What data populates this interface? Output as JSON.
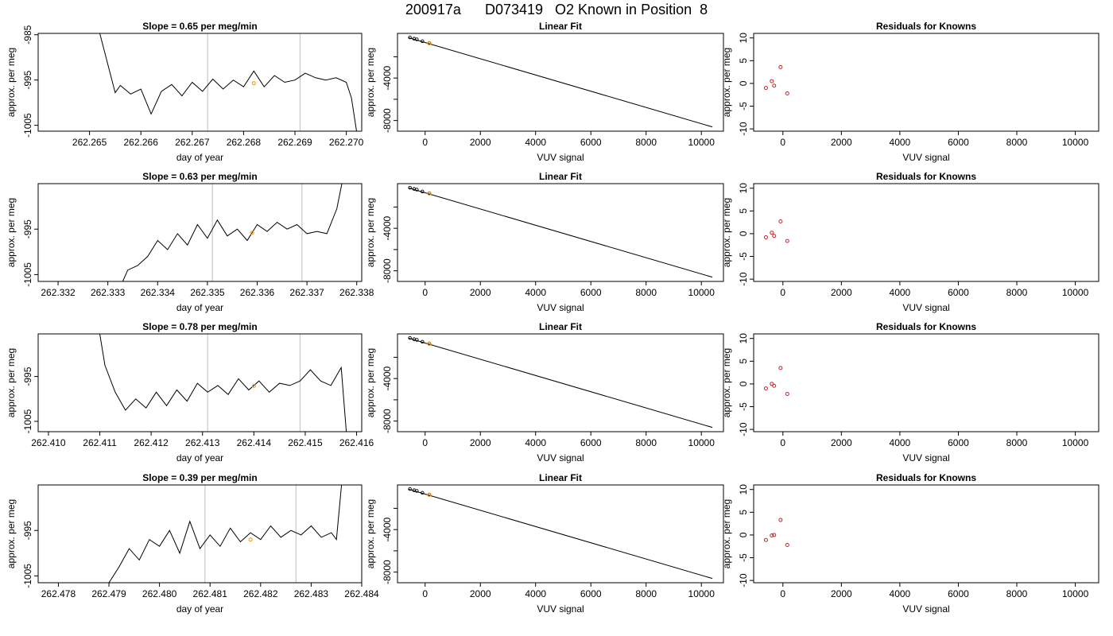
{
  "figure": {
    "title": "200917a      D073419   O2 Known in Position  8"
  },
  "colors": {
    "trace": "#000000",
    "orange_point": "#f5a623",
    "residual_point": "#cc2020",
    "grey_line": "#c8c8c8"
  },
  "chart_data": [
    {
      "type": "line",
      "row": 0,
      "title": "Slope =  0.65  per meg/min",
      "xlabel": "day of year",
      "ylabel": "approx. per meg",
      "xlim": [
        262.264,
        262.2703
      ],
      "ylim": [
        -1006.3,
        -984.7
      ],
      "xticks": [
        262.265,
        262.266,
        262.267,
        262.268,
        262.269,
        262.27
      ],
      "xticklabels": [
        "262.265",
        "262.266",
        "262.267",
        "262.268",
        "262.269",
        "262.270"
      ],
      "yticks": [
        -1005,
        -995,
        -985
      ],
      "yticklabels": [
        "-1005",
        "-995",
        "-985"
      ],
      "vlines": [
        262.2673,
        262.2691
      ],
      "highlight_point": [
        262.2682,
        -995.7
      ],
      "x": [
        262.2652,
        262.2655,
        262.2656,
        262.2658,
        262.266,
        262.2662,
        262.2664,
        262.2666,
        262.2668,
        262.267,
        262.2672,
        262.2674,
        262.2676,
        262.2678,
        262.268,
        262.2682,
        262.2684,
        262.2686,
        262.2688,
        262.269,
        262.2692,
        262.2694,
        262.2696,
        262.2698,
        262.27,
        262.2701,
        262.2702
      ],
      "y": [
        -984.7,
        -997.8,
        -996.2,
        -998.1,
        -997.0,
        -1002.5,
        -997.5,
        -996.0,
        -998.5,
        -995.5,
        -997.5,
        -994.8,
        -997.0,
        -995.0,
        -996.5,
        -993.0,
        -996.5,
        -994.0,
        -995.5,
        -995.0,
        -993.5,
        -994.5,
        -995.0,
        -994.5,
        -995.5,
        -999.0,
        -1006.3
      ]
    },
    {
      "type": "line",
      "title": "Linear Fit",
      "xlabel": "VUV signal",
      "ylabel": "approx. per meg",
      "xlim": [
        -1000,
        10800
      ],
      "ylim": [
        -9000,
        200
      ],
      "xticks": [
        0,
        2000,
        4000,
        6000,
        8000,
        10000
      ],
      "xticklabels": [
        "0",
        "2000",
        "4000",
        "6000",
        "8000",
        "10000"
      ],
      "yticks": [
        -8000,
        -6000,
        -4000,
        -2000
      ],
      "yticklabels": [
        "-8000",
        "",
        "-4000",
        ""
      ],
      "fit_line": [
        [
          -600,
          -200
        ],
        [
          10400,
          -8600
        ]
      ],
      "points": [
        [
          -550,
          -180
        ],
        [
          -400,
          -300
        ],
        [
          -300,
          -360
        ],
        [
          -100,
          -540
        ],
        [
          150,
          -720
        ]
      ],
      "orange_point": [
        150,
        -720
      ]
    },
    {
      "type": "scatter",
      "title": "Residuals for Knowns",
      "xlabel": "VUV signal",
      "ylabel": "approx. per meg",
      "xlim": [
        -1000,
        10800
      ],
      "ylim": [
        -10.5,
        11
      ],
      "xticks": [
        0,
        2000,
        4000,
        6000,
        8000,
        10000
      ],
      "xticklabels": [
        "0",
        "2000",
        "4000",
        "6000",
        "8000",
        "10000"
      ],
      "yticks": [
        -10,
        -5,
        0,
        5,
        10
      ],
      "yticklabels": [
        "-10",
        "-5",
        "0",
        "5",
        "10"
      ],
      "x": [
        -580,
        -380,
        -300,
        -80,
        150
      ],
      "y": [
        -1.0,
        0.5,
        -0.5,
        3.6,
        -2.2
      ]
    },
    {
      "type": "line",
      "row": 1,
      "title": "Slope =  0.63  per meg/min",
      "xlabel": "day of year",
      "ylabel": "approx. per meg",
      "xlim": [
        262.3316,
        262.3381
      ],
      "ylim": [
        -1006.5,
        -985.0
      ],
      "xticks": [
        262.332,
        262.333,
        262.334,
        262.335,
        262.336,
        262.337,
        262.338
      ],
      "xticklabels": [
        "262.332",
        "262.333",
        "262.334",
        "262.335",
        "262.336",
        "262.337",
        "262.338"
      ],
      "yticks": [
        -1005,
        -995
      ],
      "yticklabels": [
        "-1005",
        "-995"
      ],
      "vlines": [
        262.3351,
        262.3369
      ],
      "highlight_point": [
        262.3359,
        -995.8
      ],
      "x": [
        262.3333,
        262.3334,
        262.3336,
        262.3338,
        262.334,
        262.3342,
        262.3344,
        262.3346,
        262.3348,
        262.335,
        262.3352,
        262.3354,
        262.3356,
        262.3358,
        262.336,
        262.3362,
        262.3364,
        262.3366,
        262.3368,
        262.337,
        262.3372,
        262.3374,
        262.3376,
        262.3377
      ],
      "y": [
        -1006.5,
        -1004.0,
        -1003.0,
        -1001.0,
        -997.5,
        -999.5,
        -996.0,
        -998.5,
        -994.0,
        -997.0,
        -993.0,
        -996.5,
        -995.0,
        -997.5,
        -994.0,
        -995.5,
        -993.5,
        -995.0,
        -994.0,
        -996.0,
        -995.5,
        -996.0,
        -990.5,
        -985.0
      ]
    },
    {
      "type": "line",
      "title": "Linear Fit",
      "xlabel": "VUV signal",
      "ylabel": "approx. per meg",
      "xlim": [
        -1000,
        10800
      ],
      "ylim": [
        -9000,
        200
      ],
      "xticks": [
        0,
        2000,
        4000,
        6000,
        8000,
        10000
      ],
      "xticklabels": [
        "0",
        "2000",
        "4000",
        "6000",
        "8000",
        "10000"
      ],
      "yticks": [
        -8000,
        -6000,
        -4000,
        -2000
      ],
      "yticklabels": [
        "-8000",
        "",
        "-4000",
        ""
      ],
      "fit_line": [
        [
          -600,
          -200
        ],
        [
          10400,
          -8600
        ]
      ],
      "points": [
        [
          -550,
          -180
        ],
        [
          -400,
          -300
        ],
        [
          -300,
          -360
        ],
        [
          -100,
          -540
        ],
        [
          150,
          -720
        ]
      ],
      "orange_point": [
        150,
        -720
      ]
    },
    {
      "type": "scatter",
      "title": "Residuals for Knowns",
      "xlabel": "VUV signal",
      "ylabel": "approx. per meg",
      "xlim": [
        -1000,
        10800
      ],
      "ylim": [
        -10.5,
        11
      ],
      "xticks": [
        0,
        2000,
        4000,
        6000,
        8000,
        10000
      ],
      "xticklabels": [
        "0",
        "2000",
        "4000",
        "6000",
        "8000",
        "10000"
      ],
      "yticks": [
        -10,
        -5,
        0,
        5,
        10
      ],
      "yticklabels": [
        "-10",
        "-5",
        "0",
        "5",
        "10"
      ],
      "x": [
        -580,
        -380,
        -300,
        -80,
        150
      ],
      "y": [
        -0.8,
        0.2,
        -0.5,
        2.7,
        -1.6
      ]
    },
    {
      "type": "line",
      "row": 2,
      "title": "Slope =  0.78  per meg/min",
      "xlabel": "day of year",
      "ylabel": "approx. per meg",
      "xlim": [
        262.4098,
        262.4161
      ],
      "ylim": [
        -1007.3,
        -985.5
      ],
      "xticks": [
        262.41,
        262.411,
        262.412,
        262.413,
        262.414,
        262.415,
        262.416
      ],
      "xticklabels": [
        "262.410",
        "262.411",
        "262.412",
        "262.413",
        "262.414",
        "262.415",
        "262.416"
      ],
      "yticks": [
        -1005,
        -995
      ],
      "yticklabels": [
        "-1005",
        "-995"
      ],
      "vlines": [
        262.4131,
        262.4149
      ],
      "highlight_point": [
        262.414,
        -997.1
      ],
      "x": [
        262.411,
        262.4111,
        262.4113,
        262.4115,
        262.4117,
        262.4119,
        262.4121,
        262.4123,
        262.4125,
        262.4127,
        262.4129,
        262.4131,
        262.4133,
        262.4135,
        262.4137,
        262.4139,
        262.4141,
        262.4143,
        262.4145,
        262.4147,
        262.4149,
        262.4151,
        262.4153,
        262.4155,
        262.4157,
        262.4158
      ],
      "y": [
        -985.5,
        -992.5,
        -998.5,
        -1002.5,
        -1000.0,
        -1002.0,
        -998.5,
        -1001.5,
        -998.0,
        -1000.5,
        -996.5,
        -998.5,
        -997.0,
        -999.0,
        -995.5,
        -998.0,
        -996.0,
        -998.5,
        -996.5,
        -997.0,
        -996.0,
        -993.5,
        -996.0,
        -997.0,
        -993.0,
        -1007.3
      ]
    },
    {
      "type": "line",
      "title": "Linear Fit",
      "xlabel": "VUV signal",
      "ylabel": "approx. per meg",
      "xlim": [
        -1000,
        10800
      ],
      "ylim": [
        -9000,
        200
      ],
      "xticks": [
        0,
        2000,
        4000,
        6000,
        8000,
        10000
      ],
      "xticklabels": [
        "0",
        "2000",
        "4000",
        "6000",
        "8000",
        "10000"
      ],
      "yticks": [
        -8000,
        -6000,
        -4000,
        -2000
      ],
      "yticklabels": [
        "-8000",
        "",
        "-4000",
        ""
      ],
      "fit_line": [
        [
          -600,
          -200
        ],
        [
          10400,
          -8600
        ]
      ],
      "points": [
        [
          -550,
          -180
        ],
        [
          -400,
          -300
        ],
        [
          -300,
          -360
        ],
        [
          -100,
          -540
        ],
        [
          150,
          -720
        ]
      ],
      "orange_point": [
        150,
        -720
      ]
    },
    {
      "type": "scatter",
      "title": "Residuals for Knowns",
      "xlabel": "VUV signal",
      "ylabel": "approx. per meg",
      "xlim": [
        -1000,
        10800
      ],
      "ylim": [
        -10.5,
        11
      ],
      "xticks": [
        0,
        2000,
        4000,
        6000,
        8000,
        10000
      ],
      "xticklabels": [
        "0",
        "2000",
        "4000",
        "6000",
        "8000",
        "10000"
      ],
      "yticks": [
        -10,
        -5,
        0,
        5,
        10
      ],
      "yticklabels": [
        "-10",
        "-5",
        "0",
        "5",
        "10"
      ],
      "x": [
        -580,
        -380,
        -300,
        -80,
        150
      ],
      "y": [
        -1.0,
        0.0,
        -0.4,
        3.5,
        -2.2
      ]
    },
    {
      "type": "line",
      "row": 3,
      "title": "Slope =  0.39  per meg/min",
      "xlabel": "day of year",
      "ylabel": "approx. per meg",
      "xlim": [
        262.4776,
        262.484
      ],
      "ylim": [
        -1006.5,
        -985.0
      ],
      "xticks": [
        262.478,
        262.479,
        262.48,
        262.481,
        262.482,
        262.483,
        262.484
      ],
      "xticklabels": [
        "262.478",
        "262.479",
        "262.480",
        "262.481",
        "262.482",
        "262.483",
        "262.484"
      ],
      "yticks": [
        -1005,
        -995
      ],
      "yticklabels": [
        "-1005",
        "-995"
      ],
      "vlines": [
        262.4809,
        262.4827
      ],
      "highlight_point": [
        262.4818,
        -997.0
      ],
      "x": [
        262.479,
        262.4792,
        262.4794,
        262.4796,
        262.4798,
        262.48,
        262.4802,
        262.4804,
        262.4806,
        262.4808,
        262.481,
        262.4812,
        262.4814,
        262.4816,
        262.4818,
        262.482,
        262.4822,
        262.4824,
        262.4826,
        262.4828,
        262.483,
        262.4832,
        262.4834,
        262.4835,
        262.4836
      ],
      "y": [
        -1006.5,
        -1003.0,
        -999.0,
        -1001.5,
        -997.0,
        -998.5,
        -995.0,
        -1000.0,
        -993.0,
        -999.0,
        -996.0,
        -998.5,
        -994.5,
        -997.5,
        -995.5,
        -997.0,
        -994.0,
        -996.5,
        -995.0,
        -996.0,
        -994.0,
        -996.5,
        -995.5,
        -997.0,
        -985.0
      ]
    },
    {
      "type": "line",
      "title": "Linear Fit",
      "xlabel": "VUV signal",
      "ylabel": "approx. per meg",
      "xlim": [
        -1000,
        10800
      ],
      "ylim": [
        -9000,
        200
      ],
      "xticks": [
        0,
        2000,
        4000,
        6000,
        8000,
        10000
      ],
      "xticklabels": [
        "0",
        "2000",
        "4000",
        "6000",
        "8000",
        "10000"
      ],
      "yticks": [
        -8000,
        -6000,
        -4000,
        -2000
      ],
      "yticklabels": [
        "-8000",
        "",
        "-4000",
        ""
      ],
      "fit_line": [
        [
          -600,
          -200
        ],
        [
          10400,
          -8600
        ]
      ],
      "points": [
        [
          -550,
          -180
        ],
        [
          -400,
          -300
        ],
        [
          -300,
          -360
        ],
        [
          -100,
          -540
        ],
        [
          150,
          -720
        ]
      ],
      "orange_point": [
        150,
        -720
      ]
    },
    {
      "type": "scatter",
      "title": "Residuals for Knowns",
      "xlabel": "VUV signal",
      "ylabel": "approx. per meg",
      "xlim": [
        -1000,
        10800
      ],
      "ylim": [
        -10.5,
        11
      ],
      "xticks": [
        0,
        2000,
        4000,
        6000,
        8000,
        10000
      ],
      "xticklabels": [
        "0",
        "2000",
        "4000",
        "6000",
        "8000",
        "10000"
      ],
      "yticks": [
        -10,
        -5,
        0,
        5,
        10
      ],
      "yticklabels": [
        "-10",
        "-5",
        "0",
        "5",
        "10"
      ],
      "x": [
        -580,
        -380,
        -300,
        -80,
        150
      ],
      "y": [
        -1.1,
        -0.1,
        0.0,
        3.3,
        -2.2
      ]
    }
  ]
}
